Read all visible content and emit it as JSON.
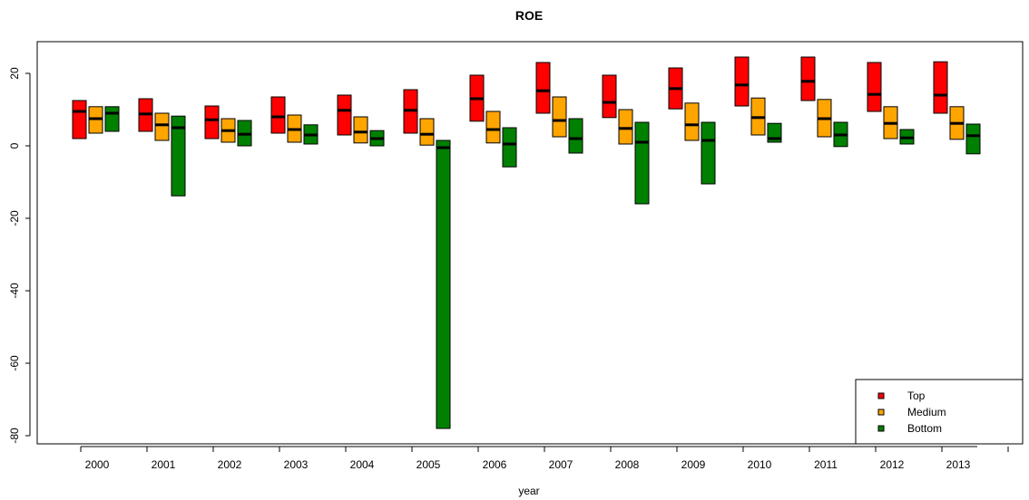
{
  "chart_data": {
    "type": "box",
    "title": "ROE",
    "xlabel": "year",
    "ylabel": "",
    "ylim": [
      -82,
      29
    ],
    "y_ticks": [
      20,
      0,
      -20,
      -40,
      -60,
      -80
    ],
    "categories": [
      "2000",
      "2001",
      "2002",
      "2003",
      "2004",
      "2005",
      "2006",
      "2007",
      "2008",
      "2009",
      "2010",
      "2011",
      "2012",
      "2013"
    ],
    "legend": {
      "position": "bottom-right"
    },
    "series": [
      {
        "name": "Top",
        "color": "#ff0000",
        "boxes": [
          {
            "low": 2.0,
            "median": 9.5,
            "high": 12.5
          },
          {
            "low": 4.0,
            "median": 8.8,
            "high": 13.0
          },
          {
            "low": 2.0,
            "median": 7.2,
            "high": 11.0
          },
          {
            "low": 3.5,
            "median": 8.0,
            "high": 13.5
          },
          {
            "low": 3.0,
            "median": 9.8,
            "high": 14.0
          },
          {
            "low": 3.5,
            "median": 9.8,
            "high": 15.5
          },
          {
            "low": 6.8,
            "median": 13.0,
            "high": 19.5
          },
          {
            "low": 9.0,
            "median": 15.2,
            "high": 23.0
          },
          {
            "low": 7.8,
            "median": 12.0,
            "high": 19.5
          },
          {
            "low": 10.2,
            "median": 15.8,
            "high": 21.5
          },
          {
            "low": 11.0,
            "median": 16.8,
            "high": 24.5
          },
          {
            "low": 12.5,
            "median": 17.8,
            "high": 24.5
          },
          {
            "low": 9.5,
            "median": 14.2,
            "high": 23.0
          },
          {
            "low": 9.0,
            "median": 14.0,
            "high": 23.2
          }
        ]
      },
      {
        "name": "Medium",
        "color": "#ffa500",
        "boxes": [
          {
            "low": 3.5,
            "median": 7.5,
            "high": 10.8
          },
          {
            "low": 1.5,
            "median": 5.8,
            "high": 9.0
          },
          {
            "low": 1.0,
            "median": 4.2,
            "high": 7.5
          },
          {
            "low": 1.0,
            "median": 4.5,
            "high": 8.5
          },
          {
            "low": 0.8,
            "median": 3.8,
            "high": 8.0
          },
          {
            "low": 0.2,
            "median": 3.2,
            "high": 7.5
          },
          {
            "low": 0.8,
            "median": 4.5,
            "high": 9.5
          },
          {
            "low": 2.5,
            "median": 7.0,
            "high": 13.5
          },
          {
            "low": 0.5,
            "median": 4.8,
            "high": 10.0
          },
          {
            "low": 1.5,
            "median": 5.8,
            "high": 11.8
          },
          {
            "low": 3.0,
            "median": 7.8,
            "high": 13.2
          },
          {
            "low": 2.5,
            "median": 7.5,
            "high": 12.8
          },
          {
            "low": 2.0,
            "median": 6.2,
            "high": 10.8
          },
          {
            "low": 1.8,
            "median": 6.2,
            "high": 10.8
          }
        ]
      },
      {
        "name": "Bottom",
        "color": "#008000",
        "boxes": [
          {
            "low": 4.0,
            "median": 9.0,
            "high": 10.8
          },
          {
            "low": -13.8,
            "median": 5.0,
            "high": 8.2
          },
          {
            "low": 0.0,
            "median": 3.2,
            "high": 7.0
          },
          {
            "low": 0.5,
            "median": 3.0,
            "high": 5.8
          },
          {
            "low": 0.0,
            "median": 2.0,
            "high": 4.2
          },
          {
            "low": -78.0,
            "median": -0.5,
            "high": 1.5
          },
          {
            "low": -5.8,
            "median": 0.5,
            "high": 5.0
          },
          {
            "low": -2.0,
            "median": 2.0,
            "high": 7.5
          },
          {
            "low": -16.0,
            "median": 1.0,
            "high": 6.5
          },
          {
            "low": -10.5,
            "median": 1.5,
            "high": 6.5
          },
          {
            "low": 1.0,
            "median": 2.0,
            "high": 6.2
          },
          {
            "low": -0.2,
            "median": 3.0,
            "high": 6.5
          },
          {
            "low": 0.5,
            "median": 2.2,
            "high": 4.5
          },
          {
            "low": -2.2,
            "median": 2.8,
            "high": 6.0
          }
        ]
      }
    ]
  }
}
